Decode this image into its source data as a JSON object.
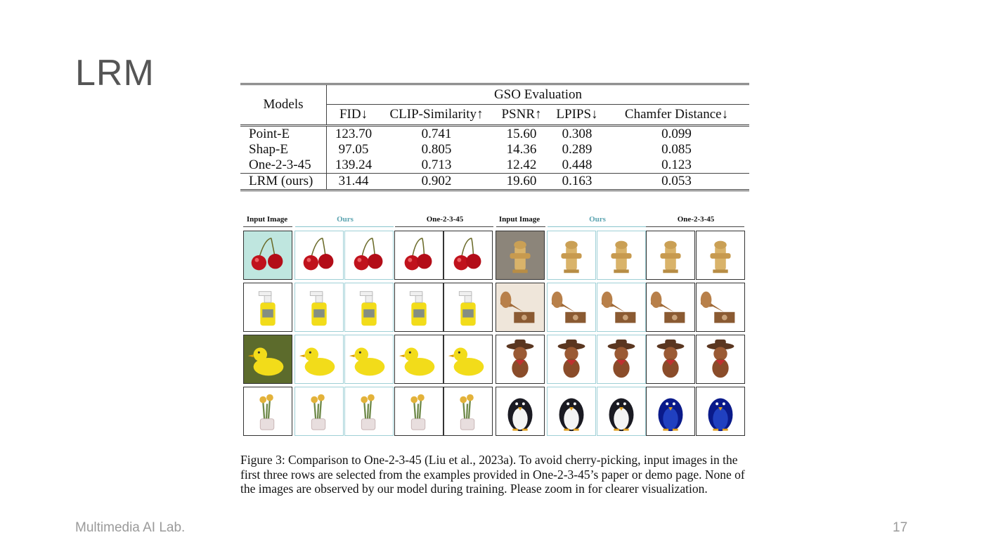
{
  "slide": {
    "title": "LRM",
    "footer_left": "Multimedia AI Lab.",
    "page_number": "17"
  },
  "table": {
    "models_header": "Models",
    "group_header": "GSO Evaluation",
    "columns": [
      "FID↓",
      "CLIP-Similarity↑",
      "PSNR↑",
      "LPIPS↓",
      "Chamfer Distance↓"
    ],
    "rows": [
      {
        "model": "Point-E",
        "values": [
          "123.70",
          "0.741",
          "15.60",
          "0.308",
          "0.099"
        ]
      },
      {
        "model": "Shap-E",
        "values": [
          "97.05",
          "0.805",
          "14.36",
          "0.289",
          "0.085"
        ]
      },
      {
        "model": "One-2-3-45",
        "values": [
          "139.24",
          "0.713",
          "12.42",
          "0.448",
          "0.123"
        ]
      },
      {
        "model": "LRM (ours)",
        "values": [
          "31.44",
          "0.902",
          "19.60",
          "0.163",
          "0.053"
        ]
      }
    ]
  },
  "figure": {
    "headers": [
      "Input Image",
      "Ours",
      "One-2-3-45",
      "Input Image",
      "Ours",
      "One-2-3-45"
    ],
    "rows": [
      [
        "cherries",
        "fire-hydrant"
      ],
      [
        "spray-bottle",
        "gramophone"
      ],
      [
        "rubber-duck",
        "cowboy-teddy"
      ],
      [
        "flower-pot",
        "penguin"
      ]
    ],
    "colors": {
      "teal": "#5aa3b0",
      "cherry": "#c0121c",
      "yellow": "#f2dc1a"
    }
  },
  "caption": "Figure 3: Comparison to One-2-3-45 (Liu et al., 2023a). To avoid cherry-picking, input images in the first three rows are selected from the examples provided in One-2-3-45’s paper or demo page. None of the images are observed by our model during training. Please zoom in for clearer visualization."
}
